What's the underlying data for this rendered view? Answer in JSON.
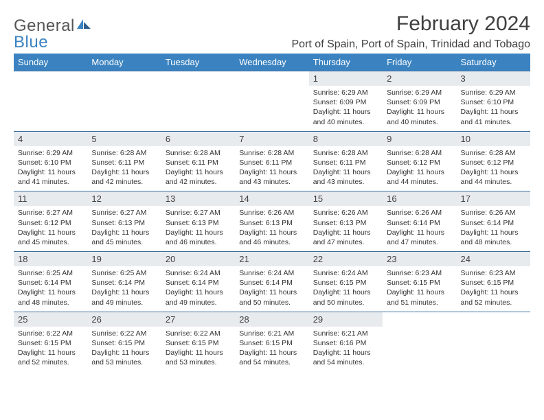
{
  "logo": {
    "text1": "General",
    "text2": "Blue"
  },
  "title": "February 2024",
  "location": "Port of Spain, Port of Spain, Trinidad and Tobago",
  "colors": {
    "header_bg": "#3b83c0",
    "header_text": "#ffffff",
    "daynum_bg": "#e8ebee",
    "daynum_border": "#3b6ea0",
    "body_text": "#333333",
    "title_text": "#404040",
    "logo_gray": "#555555",
    "logo_blue": "#3b83c0",
    "page_bg": "#ffffff"
  },
  "typography": {
    "title_fontsize": 30,
    "location_fontsize": 16,
    "weekday_fontsize": 13,
    "daynum_fontsize": 13,
    "detail_fontsize": 10.5
  },
  "weekdays": [
    "Sunday",
    "Monday",
    "Tuesday",
    "Wednesday",
    "Thursday",
    "Friday",
    "Saturday"
  ],
  "weeks": [
    {
      "nums": [
        "",
        "",
        "",
        "",
        "1",
        "2",
        "3"
      ],
      "cells": [
        null,
        null,
        null,
        null,
        {
          "sunrise": "Sunrise: 6:29 AM",
          "sunset": "Sunset: 6:09 PM",
          "daylight": "Daylight: 11 hours and 40 minutes."
        },
        {
          "sunrise": "Sunrise: 6:29 AM",
          "sunset": "Sunset: 6:09 PM",
          "daylight": "Daylight: 11 hours and 40 minutes."
        },
        {
          "sunrise": "Sunrise: 6:29 AM",
          "sunset": "Sunset: 6:10 PM",
          "daylight": "Daylight: 11 hours and 41 minutes."
        }
      ]
    },
    {
      "nums": [
        "4",
        "5",
        "6",
        "7",
        "8",
        "9",
        "10"
      ],
      "cells": [
        {
          "sunrise": "Sunrise: 6:29 AM",
          "sunset": "Sunset: 6:10 PM",
          "daylight": "Daylight: 11 hours and 41 minutes."
        },
        {
          "sunrise": "Sunrise: 6:28 AM",
          "sunset": "Sunset: 6:11 PM",
          "daylight": "Daylight: 11 hours and 42 minutes."
        },
        {
          "sunrise": "Sunrise: 6:28 AM",
          "sunset": "Sunset: 6:11 PM",
          "daylight": "Daylight: 11 hours and 42 minutes."
        },
        {
          "sunrise": "Sunrise: 6:28 AM",
          "sunset": "Sunset: 6:11 PM",
          "daylight": "Daylight: 11 hours and 43 minutes."
        },
        {
          "sunrise": "Sunrise: 6:28 AM",
          "sunset": "Sunset: 6:11 PM",
          "daylight": "Daylight: 11 hours and 43 minutes."
        },
        {
          "sunrise": "Sunrise: 6:28 AM",
          "sunset": "Sunset: 6:12 PM",
          "daylight": "Daylight: 11 hours and 44 minutes."
        },
        {
          "sunrise": "Sunrise: 6:28 AM",
          "sunset": "Sunset: 6:12 PM",
          "daylight": "Daylight: 11 hours and 44 minutes."
        }
      ]
    },
    {
      "nums": [
        "11",
        "12",
        "13",
        "14",
        "15",
        "16",
        "17"
      ],
      "cells": [
        {
          "sunrise": "Sunrise: 6:27 AM",
          "sunset": "Sunset: 6:12 PM",
          "daylight": "Daylight: 11 hours and 45 minutes."
        },
        {
          "sunrise": "Sunrise: 6:27 AM",
          "sunset": "Sunset: 6:13 PM",
          "daylight": "Daylight: 11 hours and 45 minutes."
        },
        {
          "sunrise": "Sunrise: 6:27 AM",
          "sunset": "Sunset: 6:13 PM",
          "daylight": "Daylight: 11 hours and 46 minutes."
        },
        {
          "sunrise": "Sunrise: 6:26 AM",
          "sunset": "Sunset: 6:13 PM",
          "daylight": "Daylight: 11 hours and 46 minutes."
        },
        {
          "sunrise": "Sunrise: 6:26 AM",
          "sunset": "Sunset: 6:13 PM",
          "daylight": "Daylight: 11 hours and 47 minutes."
        },
        {
          "sunrise": "Sunrise: 6:26 AM",
          "sunset": "Sunset: 6:14 PM",
          "daylight": "Daylight: 11 hours and 47 minutes."
        },
        {
          "sunrise": "Sunrise: 6:26 AM",
          "sunset": "Sunset: 6:14 PM",
          "daylight": "Daylight: 11 hours and 48 minutes."
        }
      ]
    },
    {
      "nums": [
        "18",
        "19",
        "20",
        "21",
        "22",
        "23",
        "24"
      ],
      "cells": [
        {
          "sunrise": "Sunrise: 6:25 AM",
          "sunset": "Sunset: 6:14 PM",
          "daylight": "Daylight: 11 hours and 48 minutes."
        },
        {
          "sunrise": "Sunrise: 6:25 AM",
          "sunset": "Sunset: 6:14 PM",
          "daylight": "Daylight: 11 hours and 49 minutes."
        },
        {
          "sunrise": "Sunrise: 6:24 AM",
          "sunset": "Sunset: 6:14 PM",
          "daylight": "Daylight: 11 hours and 49 minutes."
        },
        {
          "sunrise": "Sunrise: 6:24 AM",
          "sunset": "Sunset: 6:14 PM",
          "daylight": "Daylight: 11 hours and 50 minutes."
        },
        {
          "sunrise": "Sunrise: 6:24 AM",
          "sunset": "Sunset: 6:15 PM",
          "daylight": "Daylight: 11 hours and 50 minutes."
        },
        {
          "sunrise": "Sunrise: 6:23 AM",
          "sunset": "Sunset: 6:15 PM",
          "daylight": "Daylight: 11 hours and 51 minutes."
        },
        {
          "sunrise": "Sunrise: 6:23 AM",
          "sunset": "Sunset: 6:15 PM",
          "daylight": "Daylight: 11 hours and 52 minutes."
        }
      ]
    },
    {
      "nums": [
        "25",
        "26",
        "27",
        "28",
        "29",
        "",
        ""
      ],
      "cells": [
        {
          "sunrise": "Sunrise: 6:22 AM",
          "sunset": "Sunset: 6:15 PM",
          "daylight": "Daylight: 11 hours and 52 minutes."
        },
        {
          "sunrise": "Sunrise: 6:22 AM",
          "sunset": "Sunset: 6:15 PM",
          "daylight": "Daylight: 11 hours and 53 minutes."
        },
        {
          "sunrise": "Sunrise: 6:22 AM",
          "sunset": "Sunset: 6:15 PM",
          "daylight": "Daylight: 11 hours and 53 minutes."
        },
        {
          "sunrise": "Sunrise: 6:21 AM",
          "sunset": "Sunset: 6:15 PM",
          "daylight": "Daylight: 11 hours and 54 minutes."
        },
        {
          "sunrise": "Sunrise: 6:21 AM",
          "sunset": "Sunset: 6:16 PM",
          "daylight": "Daylight: 11 hours and 54 minutes."
        },
        null,
        null
      ]
    }
  ]
}
